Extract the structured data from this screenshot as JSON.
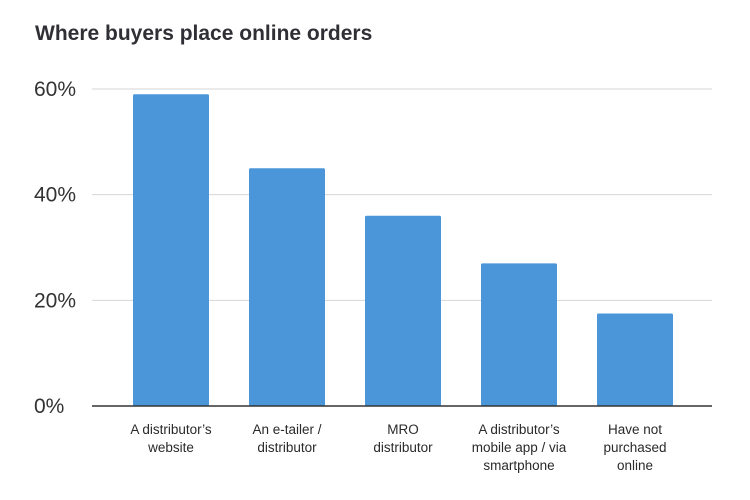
{
  "chart_data": {
    "type": "bar",
    "title": "Where buyers place online orders",
    "xlabel": "",
    "ylabel": "",
    "categories": [
      "A distributor’s website",
      "An e-tailer / distributor",
      "MRO distributor",
      "A distributor’s mobile app / via smartphone",
      "Have not purchased online"
    ],
    "category_lines": [
      [
        "A distributor’s",
        "website"
      ],
      [
        "An e-tailer /",
        "distributor"
      ],
      [
        "MRO",
        "distributor"
      ],
      [
        "A distributor’s",
        "mobile app / via",
        "smartphone"
      ],
      [
        "Have not",
        "purchased",
        "online"
      ]
    ],
    "values": [
      59,
      45,
      36,
      27,
      17.5
    ],
    "ylim": [
      0,
      60
    ],
    "yticks": [
      0,
      20,
      40,
      60
    ],
    "ytick_labels": [
      "0%",
      "20%",
      "40%",
      "60%"
    ],
    "grid": true,
    "legend": false,
    "colors": {
      "bar": "#4a96d8",
      "grid": "#d6d6d6",
      "axis": "#333333"
    }
  }
}
